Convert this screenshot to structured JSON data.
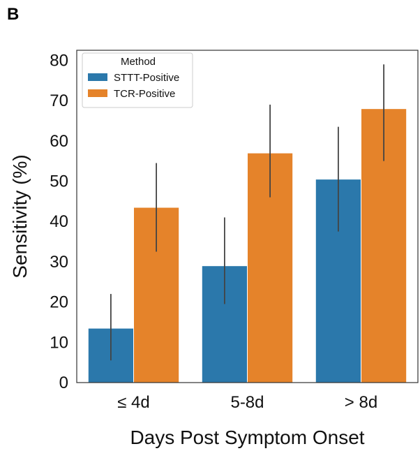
{
  "panel_label": "B",
  "chart_data": {
    "type": "bar",
    "categories": [
      "≤ 4d",
      "5-8d",
      "> 8d"
    ],
    "series": [
      {
        "name": "STTT-Positive",
        "color": "#2b78ab",
        "values": [
          13.5,
          29.0,
          50.5
        ],
        "error_low": [
          5.5,
          19.5,
          37.5
        ],
        "error_high": [
          22.0,
          41.0,
          63.5
        ]
      },
      {
        "name": "TCR-Positive",
        "color": "#e5832a",
        "values": [
          43.5,
          57.0,
          68.0
        ],
        "error_low": [
          32.5,
          46.0,
          55.0
        ],
        "error_high": [
          54.5,
          69.0,
          79.0
        ]
      }
    ],
    "title": "",
    "xlabel": "Days Post Symptom Onset",
    "ylabel": "Sensitivity (%)",
    "ylim": [
      0,
      82.5
    ],
    "yticks": [
      0,
      10,
      20,
      30,
      40,
      50,
      60,
      70,
      80
    ],
    "legend": {
      "title": "Method",
      "position": "top-left"
    },
    "grid": false
  }
}
